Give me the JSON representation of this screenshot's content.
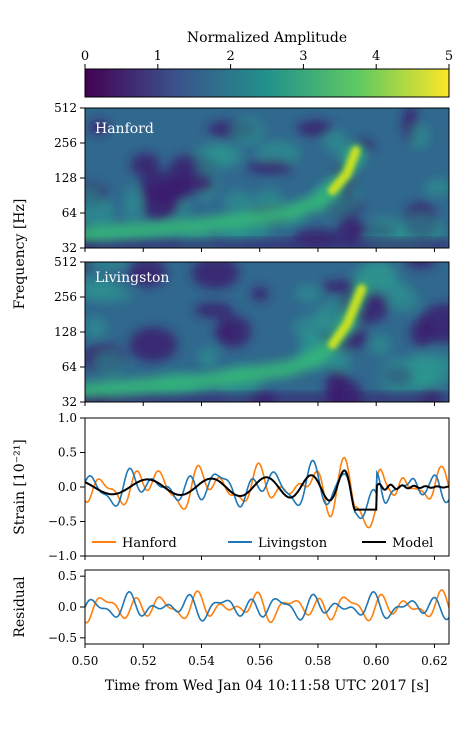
{
  "chart_data": {
    "type": "line",
    "colorbar": {
      "title": "Normalized Amplitude",
      "range": [
        0,
        5
      ],
      "ticks": [
        "0",
        "1",
        "2",
        "3",
        "4",
        "5"
      ],
      "colormap": [
        "#440154",
        "#3b528b",
        "#21918c",
        "#5ec962",
        "#fde725"
      ]
    },
    "spectrograms": [
      {
        "label": "Hanford",
        "ylabel": "Frequency [Hz]",
        "yscale": "log2",
        "yticks": [
          32,
          64,
          128,
          256,
          512
        ],
        "track": [
          [
            0.5,
            42
          ],
          [
            0.54,
            50
          ],
          [
            0.57,
            64
          ],
          [
            0.58,
            80
          ],
          [
            0.585,
            100
          ],
          [
            0.59,
            140
          ],
          [
            0.593,
            220
          ]
        ]
      },
      {
        "label": "Livingston",
        "ylabel": "Frequency [Hz]",
        "yscale": "log2",
        "yticks": [
          32,
          64,
          128,
          256,
          512
        ],
        "track": [
          [
            0.5,
            40
          ],
          [
            0.54,
            48
          ],
          [
            0.57,
            62
          ],
          [
            0.58,
            78
          ],
          [
            0.585,
            100
          ],
          [
            0.59,
            150
          ],
          [
            0.595,
            300
          ]
        ]
      }
    ],
    "strain": {
      "ylabel": "Strain [10⁻²¹]",
      "ylim": [
        -1.0,
        1.0
      ],
      "yticks": [
        "−1.0",
        "−0.5",
        "0.0",
        "0.5",
        "1.0"
      ],
      "series": [
        {
          "name": "Hanford",
          "color": "#ff7f0e"
        },
        {
          "name": "Livingston",
          "color": "#1f77b4"
        },
        {
          "name": "Model",
          "color": "#000000"
        }
      ],
      "legend": "lower center"
    },
    "residual": {
      "ylabel": "Residual",
      "ylim": [
        -0.6,
        0.6
      ],
      "yticks": [
        "−0.5",
        "0.0",
        "0.5"
      ]
    },
    "x": {
      "label": "Time from Wed Jan 04 10:11:58 UTC 2017 [s]",
      "range": [
        0.5,
        0.625
      ],
      "ticks": [
        "0.50",
        "0.52",
        "0.54",
        "0.56",
        "0.58",
        "0.60",
        "0.62"
      ]
    },
    "grid": false
  }
}
